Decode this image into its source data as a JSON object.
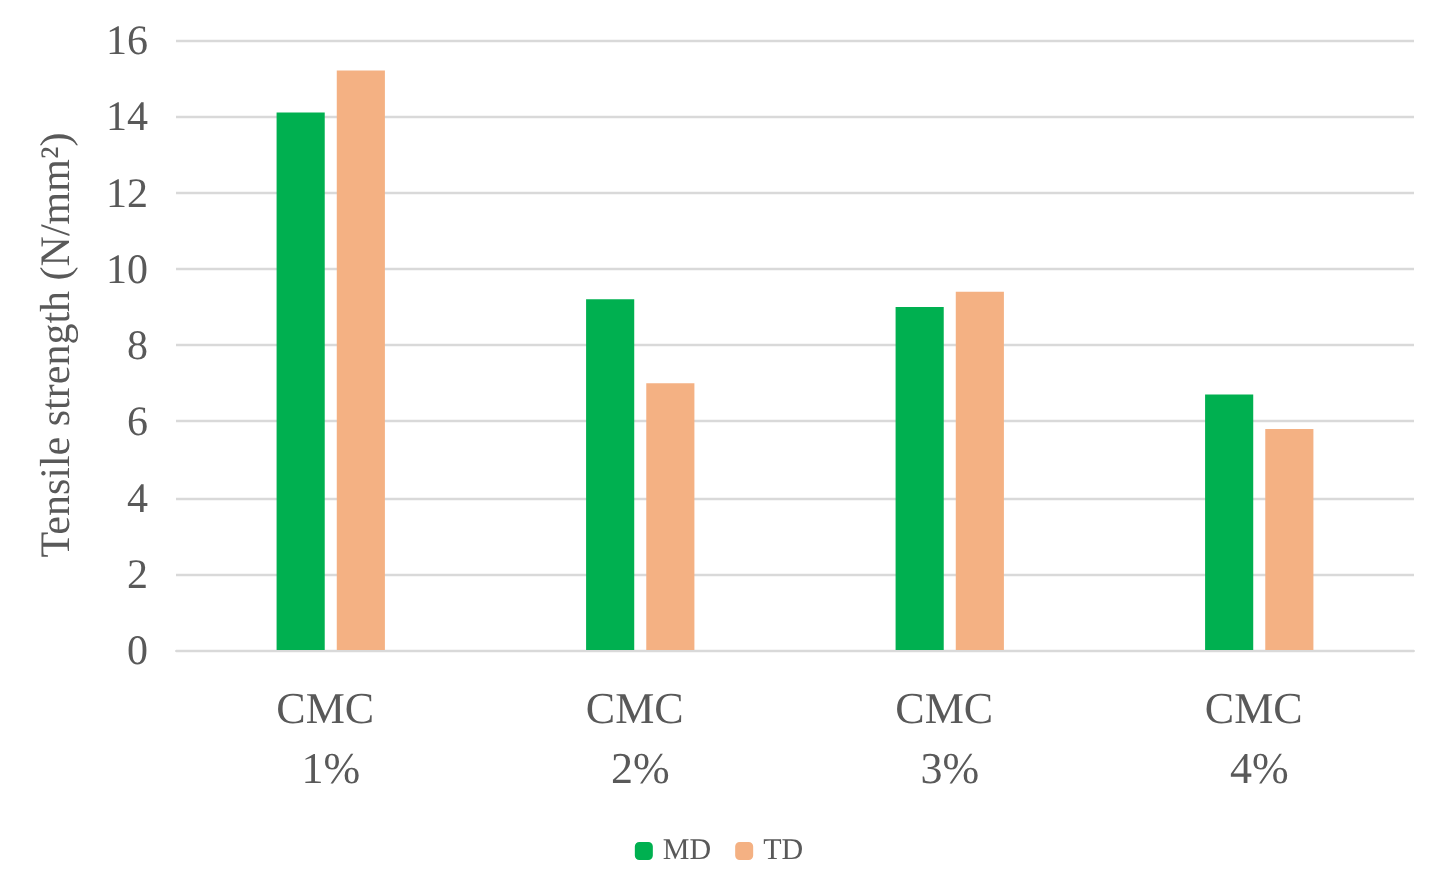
{
  "chart_data": {
    "type": "bar",
    "ylabel": "Tensile strength (N/mm²)",
    "categories": [
      "CMC 1%",
      "CMC 2%",
      "CMC 3%",
      "CMC 4%"
    ],
    "series": [
      {
        "name": "MD",
        "color": "#00b050",
        "values": [
          14.1,
          9.2,
          9.0,
          6.7
        ]
      },
      {
        "name": "TD",
        "color": "#f4b183",
        "values": [
          15.2,
          7.0,
          9.4,
          5.8
        ]
      }
    ],
    "ylim": [
      0,
      16
    ],
    "yticks": [
      0,
      2,
      4,
      6,
      8,
      10,
      12,
      14,
      16
    ],
    "grid": "y",
    "legend": "bottom"
  }
}
